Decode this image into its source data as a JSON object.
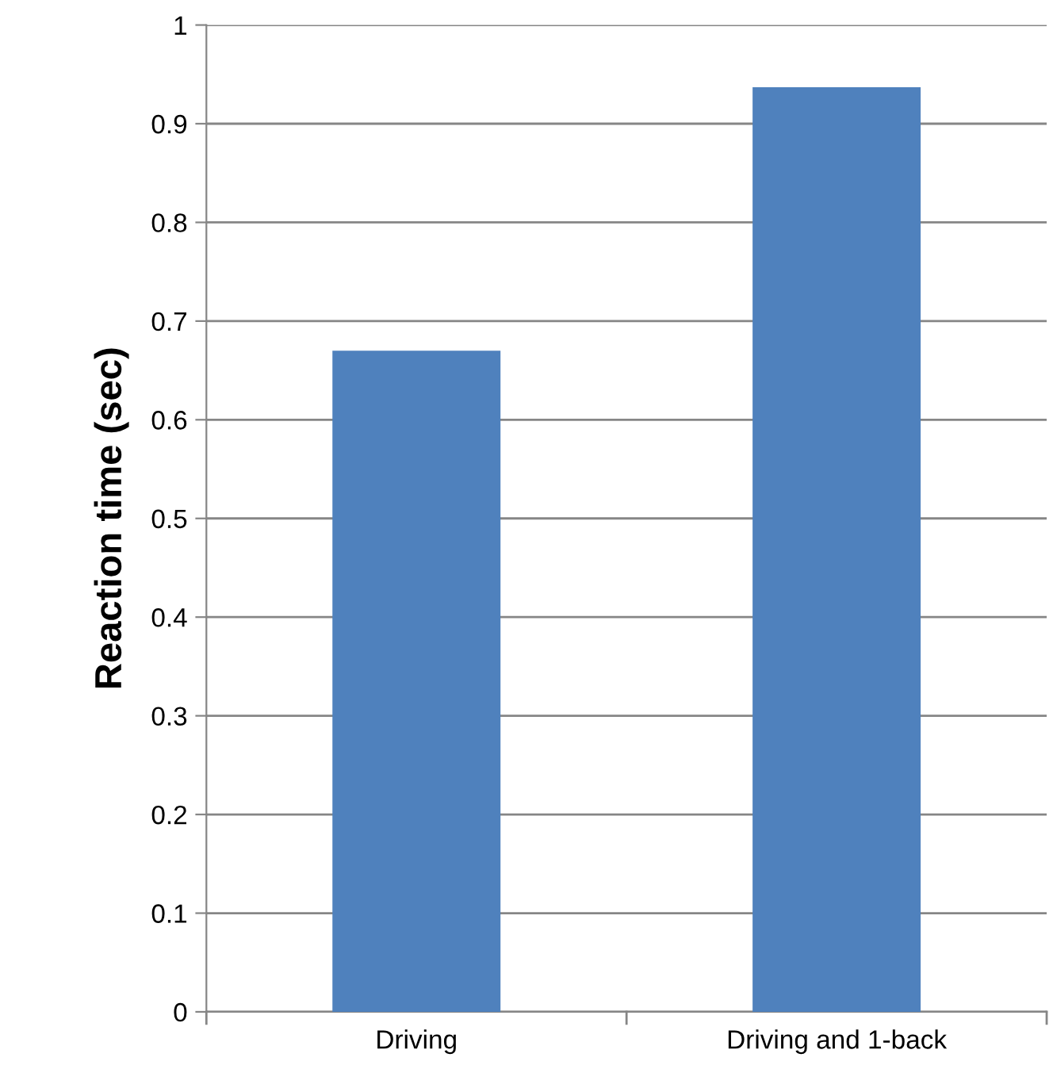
{
  "chart_data": {
    "type": "bar",
    "ylabel": "Reaction time (sec)",
    "categories": [
      "Driving",
      "Driving and 1-back"
    ],
    "values": [
      0.67,
      0.937
    ],
    "color": "#4f81bd",
    "ylim": [
      0,
      1
    ],
    "yticks": [
      0,
      0.1,
      0.2,
      0.3,
      0.4,
      0.5,
      0.6,
      0.7,
      0.8,
      0.9,
      1
    ],
    "grid": "y",
    "legend": false
  }
}
